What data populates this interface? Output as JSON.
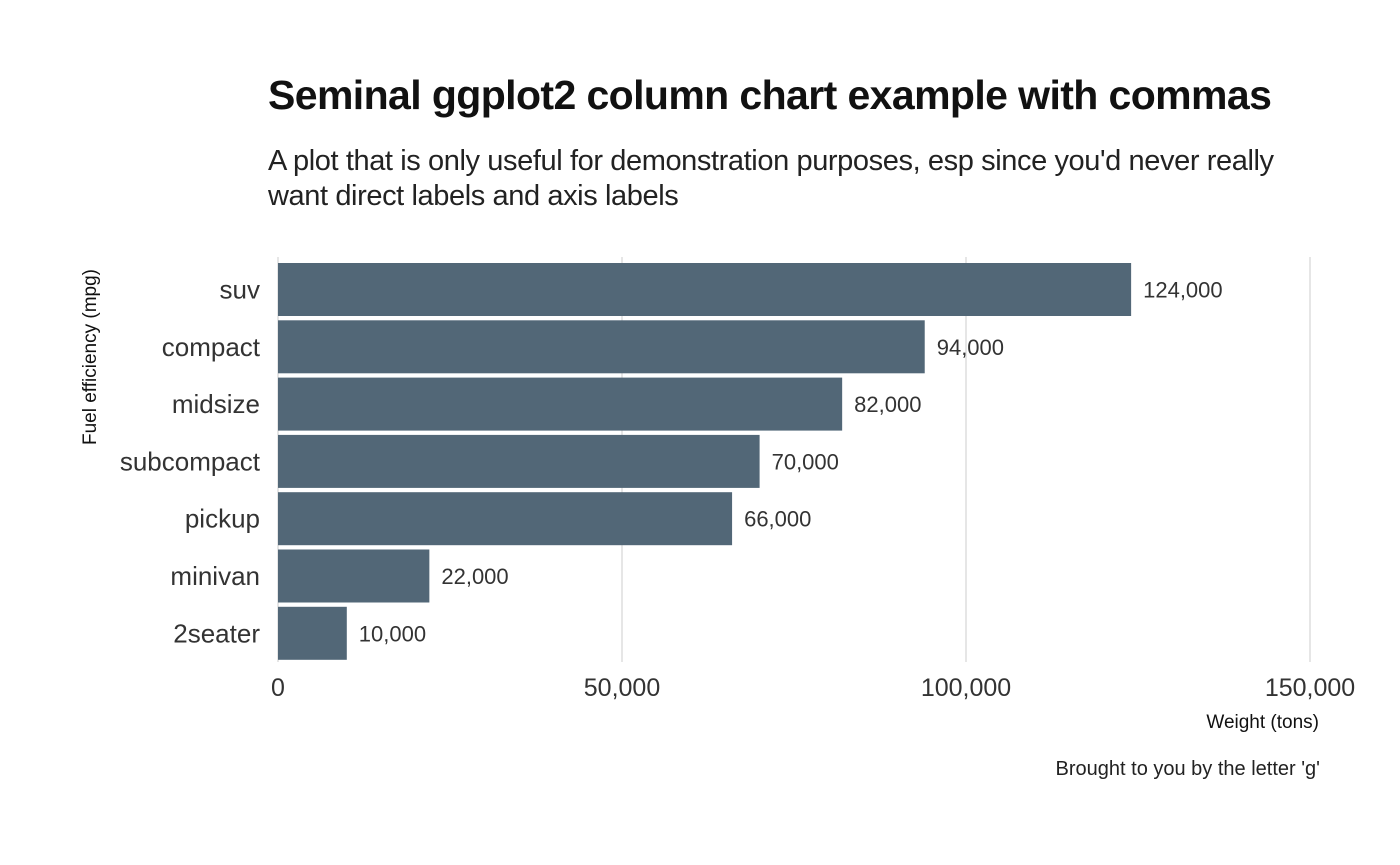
{
  "title": "Seminal ggplot2 column chart example with commas",
  "subtitle": "A plot that is only useful for demonstration purposes, esp since you'd never really want direct labels and axis labels",
  "caption": "Brought to you by the letter 'g'",
  "chart_data": {
    "type": "bar",
    "orientation": "horizontal",
    "categories": [
      "suv",
      "compact",
      "midsize",
      "subcompact",
      "pickup",
      "minivan",
      "2seater"
    ],
    "values": [
      124000,
      94000,
      82000,
      70000,
      66000,
      22000,
      10000
    ],
    "value_labels": [
      "124,000",
      "94,000",
      "82,000",
      "70,000",
      "66,000",
      "22,000",
      "10,000"
    ],
    "x_ticks": [
      0,
      50000,
      100000,
      150000
    ],
    "x_tick_labels": [
      "0",
      "50,000",
      "100,000",
      "150,000"
    ],
    "xlim": [
      0,
      150000
    ],
    "xlabel": "Weight (tons)",
    "ylabel": "Fuel efficiency (mpg)",
    "grid": "vertical-major",
    "legend": "none",
    "bar_color": "#526777"
  }
}
